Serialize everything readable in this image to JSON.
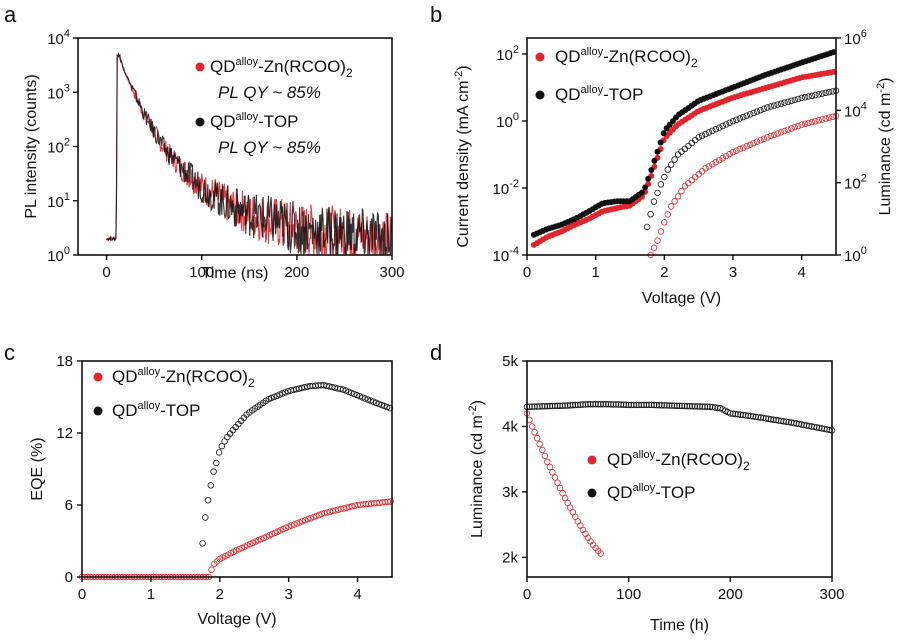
{
  "colors": {
    "red": "#e0262c",
    "black": "#111111",
    "red_open": "#e66a6a",
    "black_open": "#555555"
  },
  "chart_data": [
    {
      "panel": "a",
      "type": "line",
      "xlabel": "Time (ns)",
      "ylabel": "PL intensity (counts)",
      "xlim": [
        -30,
        300
      ],
      "ylim": [
        1,
        10000
      ],
      "yscale": "log",
      "xticks": [
        0,
        100,
        200,
        300
      ],
      "yticks_exp": [
        0,
        1,
        2,
        3,
        4
      ],
      "grid": false,
      "legend_placement": "top-right",
      "series": [
        {
          "name_base": "QD",
          "name_sup": "alloy",
          "name_rest": "-Zn(RCOO)",
          "name_sub": "2",
          "note": "PL QY ~ 85%",
          "color": "#e0262c",
          "x": [
            0,
            5,
            10,
            12,
            15,
            20,
            30,
            40,
            60,
            80,
            100,
            130,
            160,
            200,
            250,
            300
          ],
          "y": [
            2,
            2,
            2,
            4800,
            3800,
            2200,
            900,
            380,
            95,
            38,
            18,
            8,
            5,
            3,
            2.5,
            2
          ]
        },
        {
          "name_base": "QD",
          "name_sup": "alloy",
          "name_rest": "-TOP",
          "name_sub": "",
          "note": "PL QY ~ 85%",
          "color": "#111111",
          "x": [
            0,
            5,
            10,
            12,
            15,
            20,
            30,
            40,
            60,
            80,
            100,
            130,
            160,
            200,
            250,
            300
          ],
          "y": [
            2,
            2,
            2,
            4800,
            3800,
            2200,
            900,
            380,
            95,
            38,
            18,
            8,
            5,
            3,
            2.5,
            2
          ]
        }
      ]
    },
    {
      "panel": "b",
      "type": "scatter",
      "xlabel": "Voltage (V)",
      "ylabel": "Current density (mA cm-2)",
      "ylabel_base": "Current density (mA cm",
      "ylabel_sup": "-2",
      "ylabel_close": ")",
      "y2label_base": "Luminance (cd m",
      "y2label_sup": "-2",
      "y2label_close": ")",
      "xlim": [
        0,
        4.5
      ],
      "ylim": [
        0.0001,
        300
      ],
      "y2lim": [
        1,
        1000000
      ],
      "yscale": "log",
      "xticks": [
        0,
        1,
        2,
        3,
        4
      ],
      "yticks_exp": [
        -4,
        -2,
        0,
        2
      ],
      "y2ticks_exp": [
        0,
        2,
        4,
        6
      ],
      "grid": false,
      "legend_placement": "top-left",
      "series": [
        {
          "name_base": "QD",
          "name_sup": "alloy",
          "name_rest": "-Zn(RCOO)",
          "name_sub": "2",
          "color": "#e0262c",
          "fill": true,
          "axis": "left",
          "x": [
            0.1,
            0.3,
            0.5,
            0.7,
            0.9,
            1.1,
            1.3,
            1.5,
            1.7,
            1.8,
            1.9,
            2.0,
            2.2,
            2.5,
            3.0,
            3.5,
            4.0,
            4.5
          ],
          "y": [
            0.0002,
            0.00035,
            0.0005,
            0.0008,
            0.0012,
            0.002,
            0.0025,
            0.003,
            0.006,
            0.02,
            0.08,
            0.3,
            0.8,
            2,
            5,
            10,
            20,
            30
          ]
        },
        {
          "name_base": "QD",
          "name_sup": "alloy",
          "name_rest": "-TOP",
          "name_sub": "",
          "color": "#111111",
          "fill": true,
          "axis": "left",
          "x": [
            0.1,
            0.3,
            0.5,
            0.7,
            0.9,
            1.1,
            1.3,
            1.5,
            1.7,
            1.8,
            1.9,
            2.0,
            2.2,
            2.5,
            3.0,
            3.5,
            4.0,
            4.5
          ],
          "y": [
            0.0004,
            0.0006,
            0.0008,
            0.0012,
            0.002,
            0.0035,
            0.004,
            0.004,
            0.008,
            0.03,
            0.12,
            0.5,
            1.5,
            4,
            10,
            25,
            55,
            120
          ]
        },
        {
          "name": "",
          "color": "#e0262c",
          "fill": false,
          "axis": "right",
          "x": [
            1.8,
            1.9,
            2.0,
            2.1,
            2.3,
            2.6,
            3.0,
            3.5,
            4.0,
            4.5
          ],
          "y": [
            1,
            2.5,
            8,
            22,
            80,
            250,
            700,
            1800,
            4000,
            7000
          ]
        },
        {
          "name": "",
          "color": "#111111",
          "fill": false,
          "axis": "right",
          "x": [
            1.75,
            1.85,
            1.95,
            2.05,
            2.2,
            2.5,
            3.0,
            3.5,
            4.0,
            4.5
          ],
          "y": [
            6,
            30,
            90,
            230,
            600,
            1800,
            5000,
            12000,
            22000,
            35000
          ]
        }
      ]
    },
    {
      "panel": "c",
      "type": "scatter",
      "xlabel": "Voltage (V)",
      "ylabel": "EQE (%)",
      "xlim": [
        0,
        4.5
      ],
      "ylim": [
        0,
        18
      ],
      "yscale": "linear",
      "xticks": [
        0,
        1,
        2,
        3,
        4
      ],
      "yticks": [
        0,
        6,
        12,
        18
      ],
      "grid": false,
      "legend_placement": "top-left",
      "series": [
        {
          "name_base": "QD",
          "name_sup": "alloy",
          "name_rest": "-Zn(RCOO)",
          "name_sub": "2",
          "color": "#e0262c",
          "fill": false,
          "x": [
            0.0,
            0.5,
            1.0,
            1.5,
            1.85,
            1.9,
            2.0,
            2.2,
            2.5,
            3.0,
            3.5,
            4.0,
            4.5
          ],
          "y": [
            0,
            0,
            0,
            0,
            0,
            1.0,
            1.5,
            2.1,
            2.9,
            4.2,
            5.3,
            6.0,
            6.3
          ]
        },
        {
          "name_base": "QD",
          "name_sup": "alloy",
          "name_rest": "-TOP",
          "name_sub": "",
          "color": "#111111",
          "fill": false,
          "x": [
            1.75,
            1.8,
            1.85,
            1.9,
            1.95,
            2.0,
            2.1,
            2.2,
            2.4,
            2.7,
            3.0,
            3.3,
            3.5,
            3.8,
            4.1,
            4.5
          ],
          "y": [
            2.8,
            5.5,
            7.0,
            8.6,
            9.5,
            10.6,
            11.6,
            12.3,
            13.6,
            14.8,
            15.5,
            15.9,
            16.0,
            15.6,
            14.9,
            14.0
          ]
        }
      ]
    },
    {
      "panel": "d",
      "type": "scatter",
      "xlabel": "Time (h)",
      "ylabel_base": "Luminance (cd m",
      "ylabel_sup": "-2",
      "ylabel_close": ")",
      "xlim": [
        0,
        300
      ],
      "ylim": [
        1700,
        5000
      ],
      "yscale": "linear",
      "xticks": [
        0,
        100,
        200,
        300
      ],
      "yticks": [
        2000,
        3000,
        4000,
        5000
      ],
      "yticklabels": [
        "2k",
        "3k",
        "4k",
        "5k"
      ],
      "grid": false,
      "legend_placement": "center",
      "series": [
        {
          "name_base": "QD",
          "name_sup": "alloy",
          "name_rest": "-Zn(RCOO)",
          "name_sub": "2",
          "color": "#e0262c",
          "fill": false,
          "x": [
            0,
            5,
            10,
            15,
            20,
            25,
            30,
            35,
            40,
            45,
            50,
            55,
            60,
            65,
            70,
            73
          ],
          "y": [
            4200,
            4000,
            3820,
            3640,
            3460,
            3300,
            3140,
            2980,
            2830,
            2690,
            2550,
            2420,
            2300,
            2190,
            2100,
            2050
          ]
        },
        {
          "name_base": "QD",
          "name_sup": "alloy",
          "name_rest": "-TOP",
          "name_sub": "",
          "color": "#111111",
          "fill": false,
          "x": [
            0,
            20,
            40,
            60,
            80,
            100,
            120,
            140,
            160,
            180,
            190,
            200,
            220,
            240,
            260,
            280,
            300
          ],
          "y": [
            4300,
            4310,
            4320,
            4340,
            4340,
            4330,
            4330,
            4320,
            4310,
            4300,
            4280,
            4200,
            4160,
            4110,
            4060,
            4000,
            3940
          ]
        }
      ]
    }
  ],
  "panels": {
    "a": "a",
    "b": "b",
    "c": "c",
    "d": "d"
  }
}
